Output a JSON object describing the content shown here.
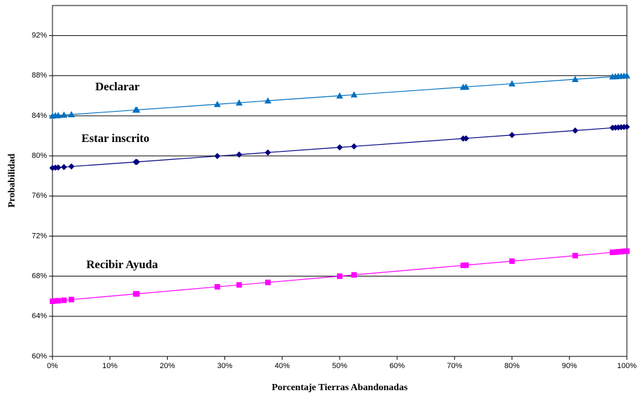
{
  "chart_data": {
    "type": "scatter-line",
    "xlabel": "Porcentaje Tierras Abandonadas",
    "ylabel": "Probabilidad",
    "annotations": [
      "Declarar",
      "Estar inscrito",
      "Recibir Ayuda"
    ],
    "x": [
      0,
      0.5,
      1,
      2,
      3.3,
      14.5,
      14.7,
      28.7,
      32.5,
      37.5,
      50,
      52.5,
      71.5,
      72,
      80,
      91,
      97.5,
      98,
      98.5,
      99,
      99.5,
      100
    ],
    "series": [
      {
        "name": "Declarar",
        "color": "#0070c0",
        "marker": "triangle",
        "values": [
          84.0,
          84.02,
          84.04,
          84.08,
          84.13,
          84.58,
          84.59,
          85.15,
          85.3,
          85.5,
          86.0,
          86.1,
          86.86,
          86.88,
          87.2,
          87.64,
          87.9,
          87.92,
          87.94,
          87.96,
          87.98,
          88.0
        ]
      },
      {
        "name": "Estar inscrito",
        "color": "#000080",
        "marker": "diamond",
        "values": [
          78.8,
          78.82,
          78.84,
          78.88,
          78.94,
          79.39,
          79.4,
          79.98,
          80.13,
          80.34,
          80.85,
          80.95,
          81.73,
          81.75,
          82.08,
          82.53,
          82.8,
          82.82,
          82.84,
          82.86,
          82.88,
          82.9
        ]
      },
      {
        "name": "Recibir Ayuda",
        "color": "#ff00ff",
        "marker": "square",
        "values": [
          65.5,
          65.53,
          65.55,
          65.6,
          65.67,
          66.23,
          66.24,
          66.94,
          67.13,
          67.38,
          68.0,
          68.13,
          69.08,
          69.1,
          69.5,
          70.05,
          70.38,
          70.4,
          70.43,
          70.45,
          70.48,
          70.5
        ]
      }
    ],
    "xlim": [
      0,
      100
    ],
    "xticks": [
      {
        "value": 0,
        "label": "0%"
      },
      {
        "value": 10,
        "label": "10%"
      },
      {
        "value": 20,
        "label": "20%"
      },
      {
        "value": 30,
        "label": "30%"
      },
      {
        "value": 40,
        "label": "40%"
      },
      {
        "value": 50,
        "label": "50%"
      },
      {
        "value": 60,
        "label": "60%"
      },
      {
        "value": 70,
        "label": "70%"
      },
      {
        "value": 80,
        "label": "80%"
      },
      {
        "value": 90,
        "label": "90%"
      },
      {
        "value": 100,
        "label": "100%"
      }
    ],
    "ylim": [
      60,
      95
    ],
    "yticks": [
      {
        "value": 60,
        "label": "60%"
      },
      {
        "value": 64,
        "label": "64%"
      },
      {
        "value": 68,
        "label": "68%"
      },
      {
        "value": 72,
        "label": "72%"
      },
      {
        "value": 76,
        "label": "76%"
      },
      {
        "value": 80,
        "label": "80%"
      },
      {
        "value": 84,
        "label": "84%"
      },
      {
        "value": 88,
        "label": "88%"
      },
      {
        "value": 92,
        "label": "92%"
      }
    ],
    "grid": true
  }
}
